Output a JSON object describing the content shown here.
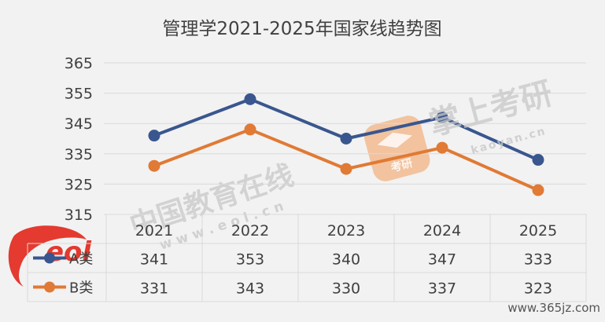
{
  "chart_data": {
    "type": "line",
    "title": "管理学2021-2025年国家线趋势图",
    "categories": [
      "2021",
      "2022",
      "2023",
      "2024",
      "2025"
    ],
    "series": [
      {
        "name": "A类",
        "values": [
          341,
          353,
          340,
          347,
          333
        ],
        "color": "#3a568f"
      },
      {
        "name": "B类",
        "values": [
          331,
          343,
          330,
          337,
          323
        ],
        "color": "#e07a35"
      }
    ],
    "y_ticks": [
      "365",
      "355",
      "345",
      "335",
      "325",
      "315"
    ],
    "ylim": [
      315,
      365
    ],
    "grid": true,
    "data_table": true,
    "xlabel": "",
    "ylabel": ""
  },
  "watermarks": {
    "eol_brand": "中国教育在线",
    "eol_url": "w w w . e o l . c n",
    "eol_logo": "eol",
    "kaoyan_brand": "掌上考研",
    "kaoyan_url": "kaoyan.cn",
    "kaoyan_badge": "考研",
    "corner_url": "www.365jz.com"
  },
  "colors": {
    "background": "#f2f2f2",
    "grid": "#d9d9d9",
    "text": "#404040",
    "watermark": "#c8c8c8",
    "eol_red": "#e2261b",
    "kaoyan_orange": "#f39c5a"
  },
  "icons": [
    "eol-logo-icon",
    "kaoyan-badge-icon"
  ]
}
